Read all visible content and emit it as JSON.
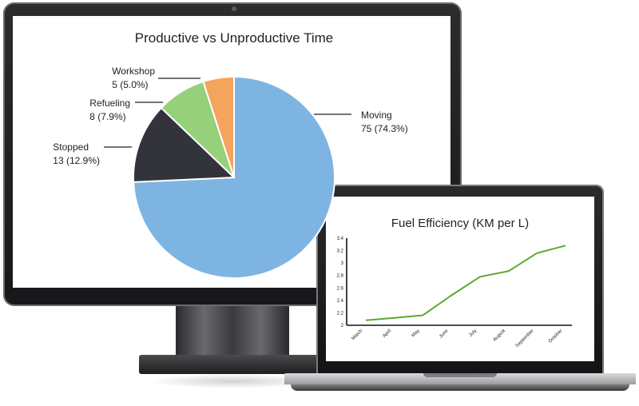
{
  "chart_data": [
    {
      "type": "pie",
      "title": "Productive vs Unproductive Time",
      "slices": [
        {
          "name": "Moving",
          "value": 75,
          "percent_label": "75 (74.3%)",
          "color": "#7eb4e2"
        },
        {
          "name": "Stopped",
          "value": 13,
          "percent_label": "13 (12.9%)",
          "color": "#33343b"
        },
        {
          "name": "Refueling",
          "value": 8,
          "percent_label": "8 (7.9%)",
          "color": "#96d07a"
        },
        {
          "name": "Workshop",
          "value": 5,
          "percent_label": "5 (5.0%)",
          "color": "#f4a45c"
        }
      ]
    },
    {
      "type": "line",
      "title": "Fuel Efficiency (KM per L)",
      "categories": [
        "March",
        "April",
        "May",
        "June",
        "July",
        "August",
        "September",
        "October"
      ],
      "series": [
        {
          "values": [
            2.08,
            2.12,
            2.16,
            2.48,
            2.78,
            2.87,
            3.16,
            3.28
          ],
          "color": "#5ea832"
        }
      ],
      "yticks": [
        "2",
        "2.2",
        "2.4",
        "2.6",
        "2.8",
        "3",
        "3.2",
        "3.4"
      ],
      "ylim": [
        2,
        3.4
      ],
      "grid": false
    }
  ]
}
